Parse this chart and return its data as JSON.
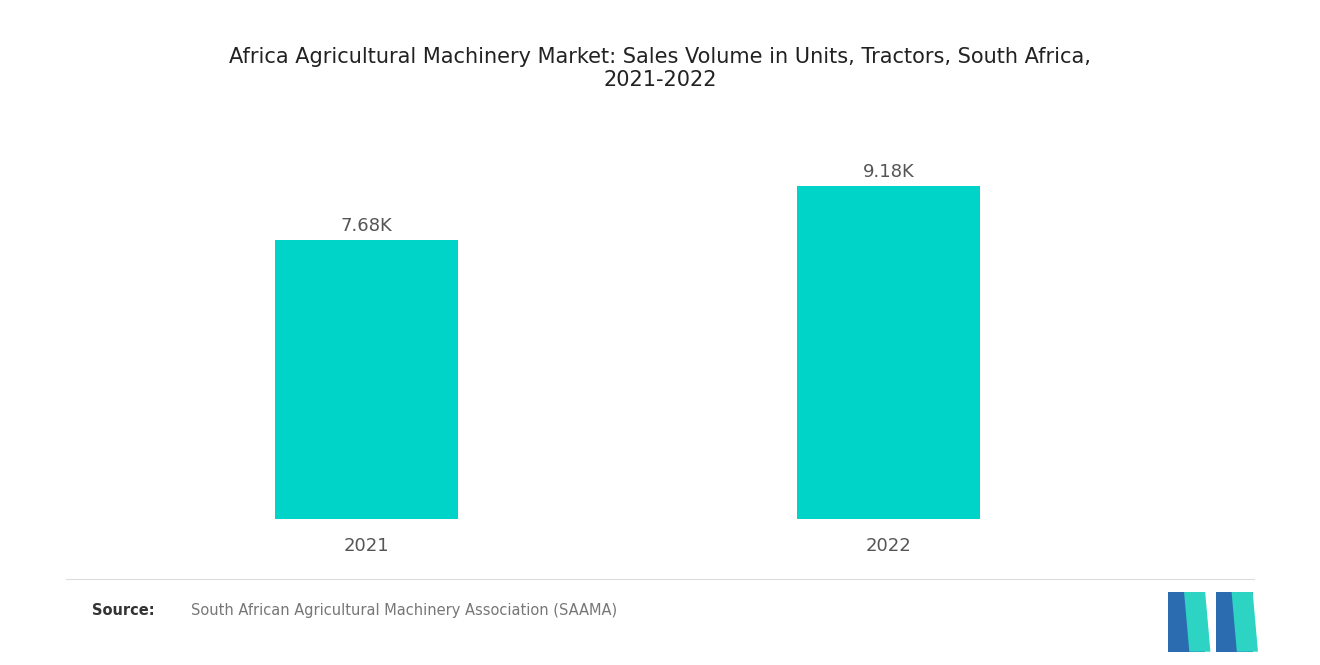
{
  "title": "Africa Agricultural Machinery Market: Sales Volume in Units, Tractors, South Africa,\n2021-2022",
  "categories": [
    "2021",
    "2022"
  ],
  "values": [
    7680,
    9180
  ],
  "labels": [
    "7.68K",
    "9.18K"
  ],
  "bar_color": "#00D4C8",
  "background_color": "#ffffff",
  "title_fontsize": 15,
  "label_fontsize": 13,
  "tick_fontsize": 13,
  "ylim": [
    0,
    11000
  ],
  "bar_width": 0.35,
  "x_positions": [
    1,
    2
  ],
  "xlim": [
    0.5,
    2.7
  ]
}
